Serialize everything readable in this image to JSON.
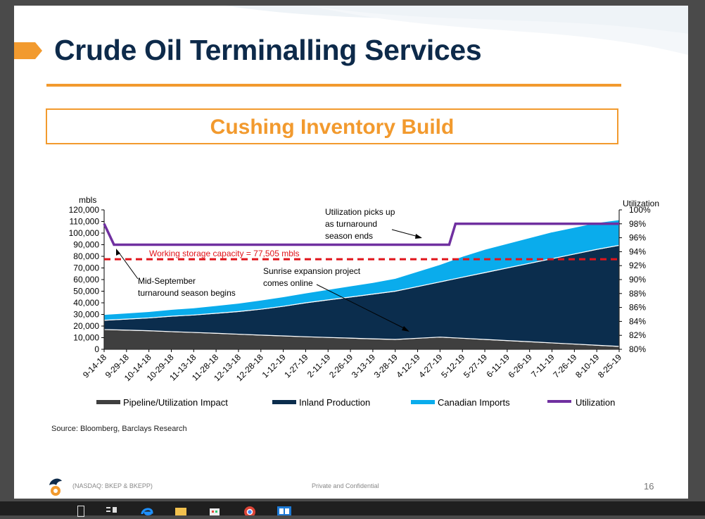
{
  "slide": {
    "title": "Crude Oil Terminalling Services",
    "subtitle": "Cushing Inventory Build",
    "source": "Source: Bloomberg, Barclays Research",
    "footer_ticker": "(NASDAQ: BKEP & BKEPP)",
    "footer_private": "Private and Confidential",
    "page_number": "16"
  },
  "colors": {
    "accent": "#f29a2e",
    "title": "#0d2a4a",
    "pipeline": "#3f3f3f",
    "inland": "#0b2d4d",
    "canadian": "#0aacec",
    "utilization": "#7030a0",
    "capacity_line": "#e0141b"
  },
  "chart_data": {
    "type": "area",
    "ylabel_left": "mbls",
    "ylabel_right": "Utilization",
    "ylim": [
      0,
      120000
    ],
    "y2lim": [
      80,
      100
    ],
    "yticks": [
      "0",
      "10,000",
      "20,000",
      "30,000",
      "40,000",
      "50,000",
      "60,000",
      "70,000",
      "80,000",
      "90,000",
      "100,000",
      "110,000",
      "120,000"
    ],
    "y2ticks": [
      "80%",
      "82%",
      "84%",
      "86%",
      "88%",
      "90%",
      "92%",
      "94%",
      "96%",
      "98%",
      "100%"
    ],
    "x": [
      "9-14-18",
      "9-29-18",
      "10-14-18",
      "10-29-18",
      "11-13-18",
      "11-28-18",
      "12-13-18",
      "12-28-18",
      "1-12-19",
      "1-27-19",
      "2-11-19",
      "2-26-19",
      "3-13-19",
      "3-28-19",
      "4-12-19",
      "4-27-19",
      "5-12-19",
      "5-27-19",
      "6-11-19",
      "6-26-19",
      "7-11-19",
      "7-26-19",
      "8-10-19",
      "8-25-19"
    ],
    "series": [
      {
        "name": "Pipeline/Utilization Impact",
        "kind": "stack",
        "values": [
          17000,
          16500,
          16000,
          15200,
          14500,
          13800,
          13000,
          12200,
          11500,
          10800,
          10200,
          9600,
          9000,
          8500,
          9500,
          10500,
          9500,
          8500,
          7500,
          6500,
          5500,
          4500,
          3500,
          2500
        ]
      },
      {
        "name": "Inland Production",
        "kind": "stack",
        "values": [
          8000,
          9500,
          11000,
          13300,
          15000,
          17200,
          19500,
          22300,
          25500,
          29200,
          32300,
          35400,
          38500,
          41500,
          44500,
          47500,
          52500,
          57500,
          62500,
          67500,
          72500,
          77500,
          82500,
          87000
        ]
      },
      {
        "name": "Canadian Imports",
        "kind": "stack",
        "values": [
          5000,
          5200,
          5500,
          5800,
          6200,
          6600,
          7200,
          7800,
          8200,
          8500,
          9000,
          9500,
          10000,
          11000,
          13000,
          15000,
          18000,
          20000,
          21000,
          22000,
          23000,
          23000,
          23000,
          22000
        ]
      },
      {
        "name": "Utilization",
        "kind": "line",
        "axis": "right",
        "values": [
          98,
          95,
          95,
          95,
          95,
          95,
          95,
          95,
          95,
          95,
          95,
          95,
          95,
          95,
          95,
          95,
          98,
          98,
          98,
          98,
          98,
          98,
          98,
          98
        ]
      }
    ],
    "reference_line": {
      "value": 77505,
      "label": "Working storage capacity = 77,505 mbls"
    },
    "annotations": [
      {
        "text_lines": [
          "Utilization picks up",
          "as turnaround",
          "season ends"
        ]
      },
      {
        "text_lines": [
          "Mid-September",
          "turnaround season begins"
        ]
      },
      {
        "text_lines": [
          "Sunrise expansion project",
          "comes online"
        ]
      }
    ],
    "legend_position": "bottom"
  }
}
